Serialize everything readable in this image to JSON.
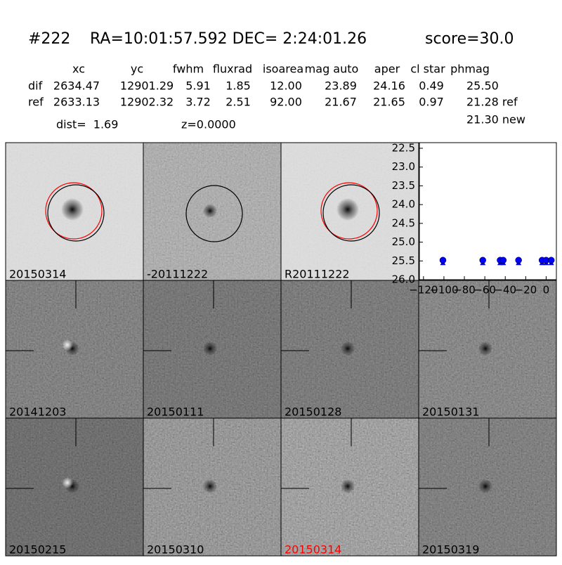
{
  "header": {
    "id": "#222",
    "coords": "RA=10:01:57.592 DEC= 2:24:01.26",
    "score": "score=30.0"
  },
  "table": {
    "columns": [
      "xc",
      "yc",
      "fwhm",
      "fluxrad",
      "isoarea",
      "mag auto",
      "aper",
      "cl star",
      "phmag"
    ],
    "rows": [
      {
        "label": "dif",
        "values": [
          "2634.47",
          "12901.29",
          "5.91",
          "1.85",
          "12.00",
          "23.89",
          "24.16",
          "0.49",
          "25.50"
        ]
      },
      {
        "label": "ref",
        "values": [
          "2633.13",
          "12902.32",
          "3.72",
          "2.51",
          "92.00",
          "21.67",
          "21.65",
          "0.97",
          "21.28 ref"
        ]
      }
    ],
    "extra": "21.30 new"
  },
  "dist": "dist=  1.69",
  "z": "z=0.0000",
  "top_panels": [
    {
      "label": "20150314"
    },
    {
      "label": "-20111222"
    },
    {
      "label": "R20111222"
    }
  ],
  "panels": [
    {
      "label": "20141203"
    },
    {
      "label": "20150111"
    },
    {
      "label": "20150128"
    },
    {
      "label": "20150131"
    },
    {
      "label": "20150215"
    },
    {
      "label": "20150310"
    },
    {
      "label": "20150314",
      "color": "red"
    },
    {
      "label": "20150319"
    }
  ],
  "chart_data": {
    "type": "scatter",
    "color": "#0000ff",
    "x": [
      -101,
      -62,
      -45,
      -42,
      -27,
      -4,
      0,
      5
    ],
    "values": [
      25.5,
      25.5,
      25.5,
      25.5,
      25.5,
      25.5,
      25.5,
      25.5
    ],
    "xlim": [
      -124,
      10
    ],
    "ylim": [
      26.0,
      22.35
    ],
    "xticks": [
      {
        "value": -120,
        "label": "−120"
      },
      {
        "value": -100,
        "label": "−100"
      },
      {
        "value": -80,
        "label": "−80"
      },
      {
        "value": -60,
        "label": "−60"
      },
      {
        "value": -40,
        "label": "−40"
      },
      {
        "value": -20,
        "label": "−20"
      },
      0
    ],
    "yticks": [
      22.5,
      {
        "value": 23,
        "label": "23.0"
      },
      23.5,
      {
        "value": 24,
        "label": "24.0"
      },
      24.5,
      {
        "value": 25,
        "label": "25.0"
      },
      25.5,
      {
        "value": 26,
        "label": "26.0"
      }
    ]
  }
}
